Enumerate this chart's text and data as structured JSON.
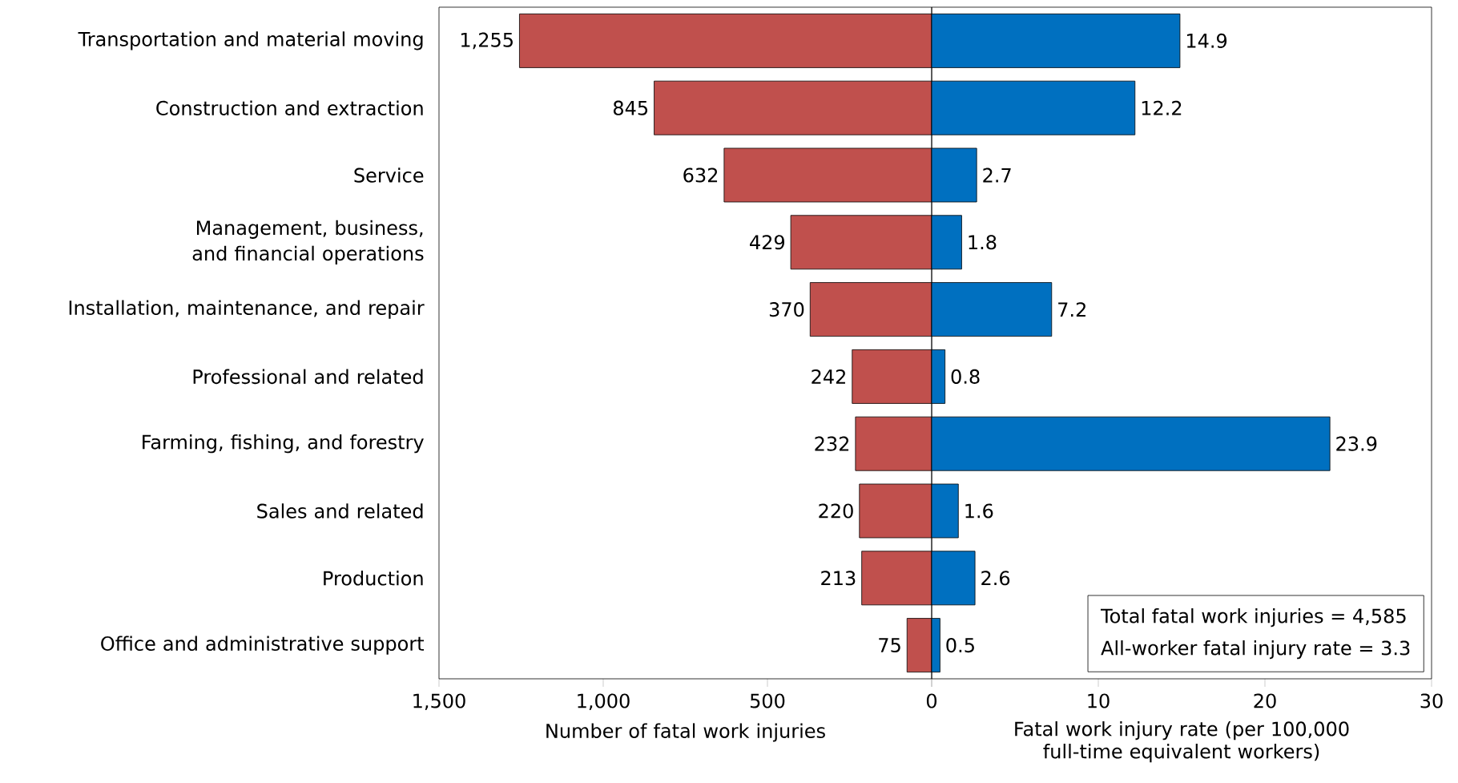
{
  "chart_data": [
    {
      "type": "bar",
      "orientation": "horizontal",
      "categories": [
        "Transportation and material moving",
        "Construction and extraction",
        "Service",
        "Management, business, and financial operations",
        "Installation, maintenance, and repair",
        "Professional and related",
        "Farming, fishing, and forestry",
        "Sales and related",
        "Production",
        "Office and administrative support"
      ],
      "values": [
        1255,
        845,
        632,
        429,
        370,
        242,
        232,
        220,
        213,
        75
      ],
      "value_labels": [
        "1,255",
        "845",
        "632",
        "429",
        "370",
        "242",
        "232",
        "220",
        "213",
        "75"
      ],
      "color": "#c0504d",
      "xlabel": "Number of fatal work injuries",
      "xlim": [
        1500,
        0
      ],
      "xticks": [
        {
          "value": 1500,
          "label": "1,500"
        },
        {
          "value": 1000,
          "label": "1,000"
        },
        500,
        0
      ]
    },
    {
      "type": "bar",
      "orientation": "horizontal",
      "categories": [
        null,
        null,
        null,
        null,
        null,
        null,
        null,
        null,
        null,
        null
      ],
      "values": [
        14.9,
        12.2,
        2.7,
        1.8,
        7.2,
        0.8,
        23.9,
        1.6,
        2.6,
        0.5
      ],
      "data_labels": true,
      "color": "#0070c0",
      "xlabel": "Fatal work injury rate (per 100,000 full-time equivalent workers)",
      "xlim": [
        0,
        30
      ],
      "xticks": [
        {
          "value": 0,
          "label": null
        },
        10,
        20,
        30
      ],
      "tick_labels": "x",
      "annotations": [
        "Total fatal work injuries = 4,585",
        "All-worker fatal injury rate = 3.3"
      ]
    }
  ]
}
